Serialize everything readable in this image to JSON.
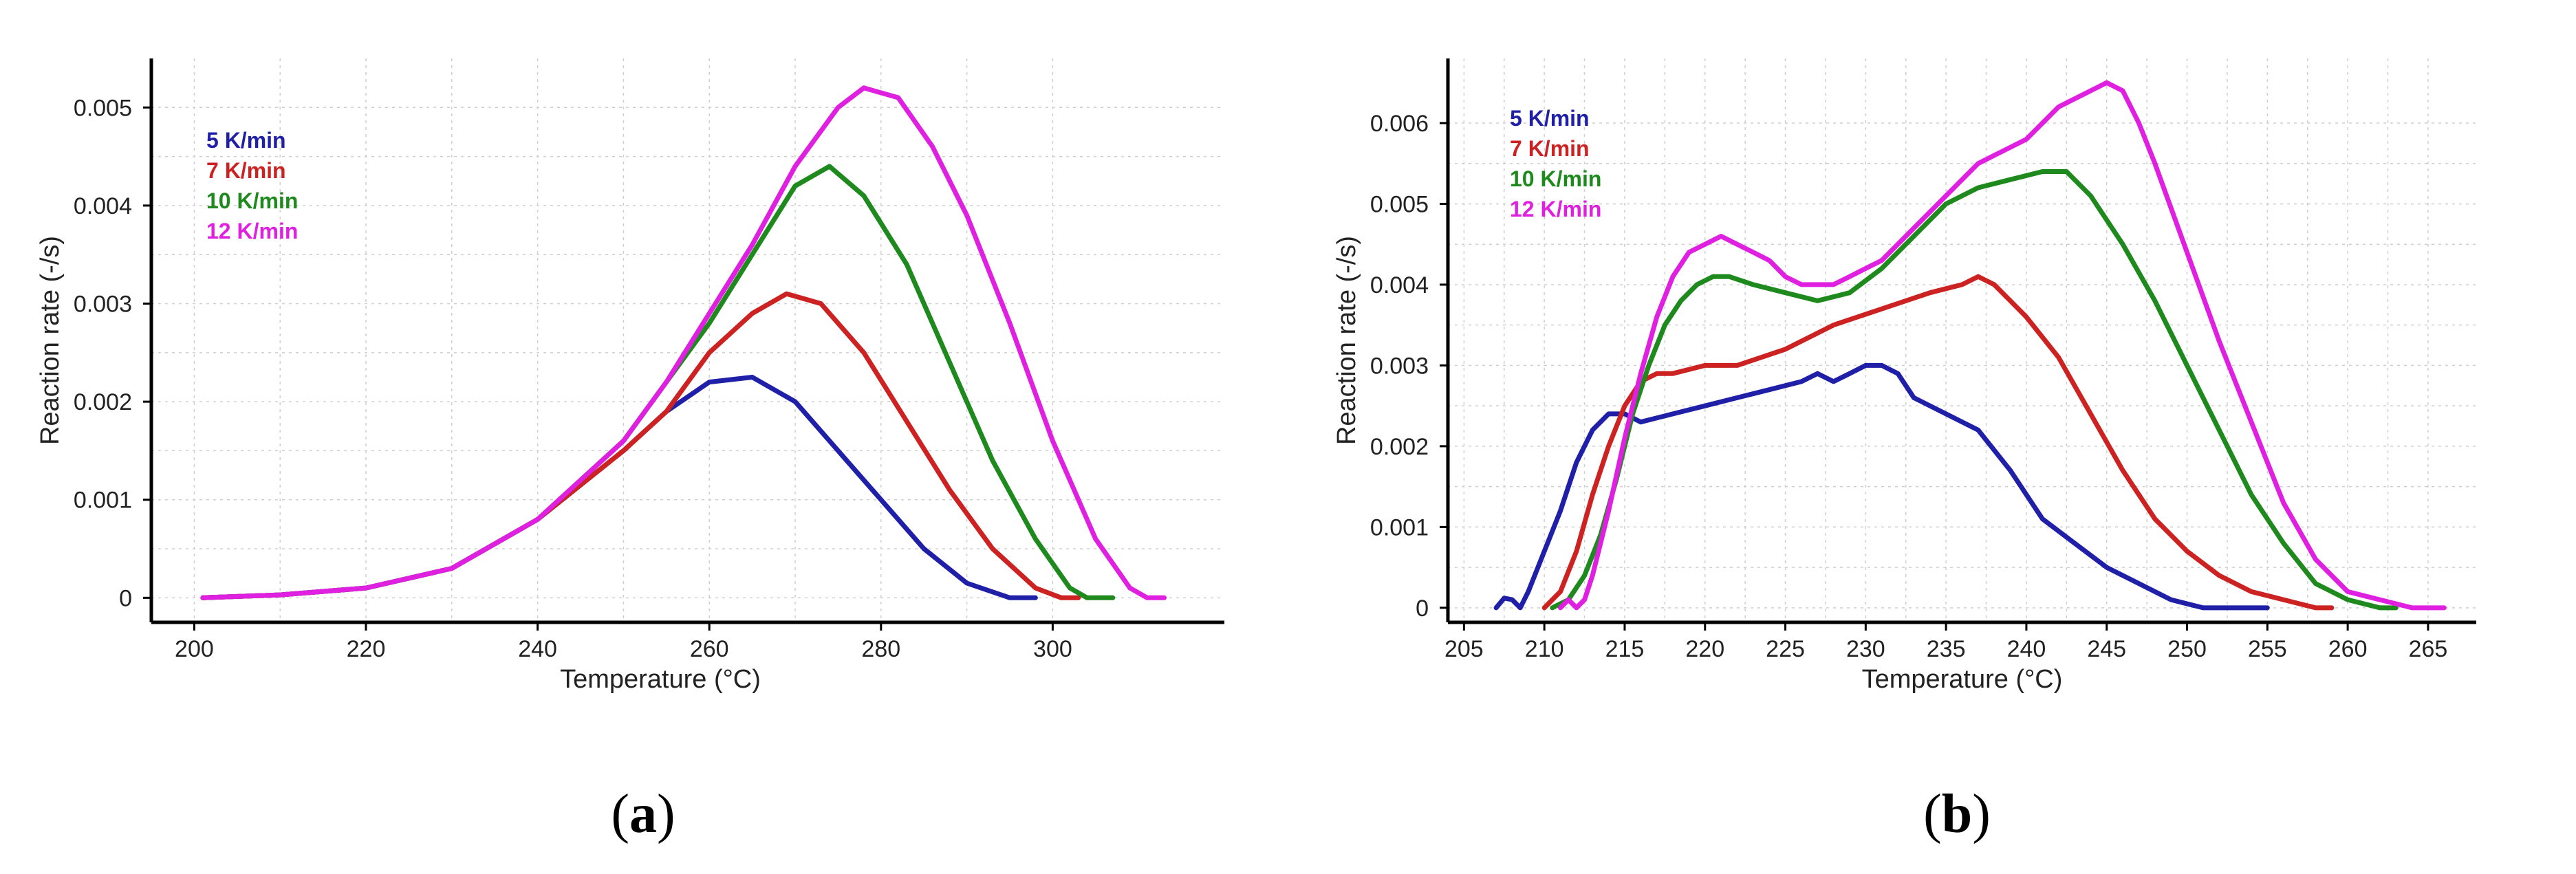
{
  "chart_data": [
    {
      "type": "line",
      "panel_label": "a",
      "xlabel": "Temperature (°C)",
      "ylabel": "Reaction rate (-/s)",
      "xlim": [
        195,
        320
      ],
      "ylim": [
        -0.00025,
        0.0055
      ],
      "xticks": [
        200,
        220,
        240,
        260,
        280,
        300
      ],
      "yticks": [
        0,
        0.001,
        0.002,
        0.003,
        0.004,
        0.005
      ],
      "ytick_labels": [
        "0",
        "0.001",
        "0.002",
        "0.003",
        "0.004",
        "0.005"
      ],
      "legend_position": "top-left",
      "series": [
        {
          "name": "5 K/min",
          "color": "#1f1fa8",
          "x": [
            201,
            210,
            220,
            230,
            240,
            250,
            255,
            260,
            265,
            270,
            275,
            280,
            285,
            290,
            295,
            298
          ],
          "y": [
            0,
            3e-05,
            0.0001,
            0.0003,
            0.0008,
            0.0015,
            0.0019,
            0.0022,
            0.00225,
            0.002,
            0.0015,
            0.001,
            0.0005,
            0.00015,
            0,
            0
          ]
        },
        {
          "name": "7 K/min",
          "color": "#cc2222",
          "x": [
            201,
            210,
            220,
            230,
            240,
            250,
            255,
            260,
            265,
            269,
            273,
            278,
            283,
            288,
            293,
            298,
            301,
            303
          ],
          "y": [
            0,
            3e-05,
            0.0001,
            0.0003,
            0.0008,
            0.0015,
            0.0019,
            0.0025,
            0.0029,
            0.0031,
            0.003,
            0.0025,
            0.0018,
            0.0011,
            0.0005,
            0.0001,
            0,
            0
          ]
        },
        {
          "name": "10 K/min",
          "color": "#1e8a1e",
          "x": [
            201,
            210,
            220,
            230,
            240,
            250,
            255,
            260,
            265,
            270,
            274,
            278,
            283,
            288,
            293,
            298,
            302,
            304,
            307
          ],
          "y": [
            0,
            3e-05,
            0.0001,
            0.0003,
            0.0008,
            0.0016,
            0.0022,
            0.0028,
            0.0035,
            0.0042,
            0.0044,
            0.0041,
            0.0034,
            0.0024,
            0.0014,
            0.0006,
            0.0001,
            0,
            0
          ]
        },
        {
          "name": "12 K/min",
          "color": "#e020e0",
          "x": [
            201,
            210,
            220,
            230,
            240,
            250,
            255,
            260,
            265,
            270,
            275,
            278,
            282,
            286,
            290,
            295,
            300,
            305,
            309,
            311,
            313
          ],
          "y": [
            0,
            3e-05,
            0.0001,
            0.0003,
            0.0008,
            0.0016,
            0.0022,
            0.0029,
            0.0036,
            0.0044,
            0.005,
            0.0052,
            0.0051,
            0.0046,
            0.0039,
            0.0028,
            0.0016,
            0.0006,
            0.0001,
            0,
            0
          ]
        }
      ]
    },
    {
      "type": "line",
      "panel_label": "b",
      "xlabel": "Temperature (°C)",
      "ylabel": "Reaction rate (-/s)",
      "xlim": [
        204,
        268
      ],
      "ylim": [
        -0.00018,
        0.0068
      ],
      "xticks": [
        205,
        210,
        215,
        220,
        225,
        230,
        235,
        240,
        245,
        250,
        255,
        260,
        265
      ],
      "yticks": [
        0,
        0.001,
        0.002,
        0.003,
        0.004,
        0.005,
        0.006
      ],
      "ytick_labels": [
        "0",
        "0.001",
        "0.002",
        "0.003",
        "0.004",
        "0.005",
        "0.006"
      ],
      "legend_position": "top-left",
      "series": [
        {
          "name": "5 K/min",
          "color": "#1f1fa8",
          "x": [
            207,
            207.5,
            208,
            208.5,
            209,
            210,
            211,
            212,
            213,
            214,
            215,
            216,
            218,
            220,
            222,
            224,
            226,
            227,
            228,
            229,
            230,
            231,
            232,
            233,
            235,
            237,
            239,
            241,
            243,
            245,
            247,
            249,
            251,
            253,
            255
          ],
          "y": [
            0,
            0.00012,
            0.0001,
            0,
            0.0002,
            0.0007,
            0.0012,
            0.0018,
            0.0022,
            0.0024,
            0.0024,
            0.0023,
            0.0024,
            0.0025,
            0.0026,
            0.0027,
            0.0028,
            0.0029,
            0.0028,
            0.0029,
            0.003,
            0.003,
            0.0029,
            0.0026,
            0.0024,
            0.0022,
            0.0017,
            0.0011,
            0.0008,
            0.0005,
            0.0003,
            0.0001,
            0,
            0,
            0
          ]
        },
        {
          "name": "7 K/min",
          "color": "#cc2222",
          "x": [
            210,
            211,
            212,
            213,
            214,
            215,
            216,
            217,
            218,
            220,
            222,
            225,
            228,
            231,
            234,
            236,
            237,
            238,
            240,
            242,
            244,
            246,
            248,
            250,
            252,
            254,
            256,
            258,
            259
          ],
          "y": [
            0,
            0.0002,
            0.0007,
            0.0014,
            0.002,
            0.0025,
            0.0028,
            0.0029,
            0.0029,
            0.003,
            0.003,
            0.0032,
            0.0035,
            0.0037,
            0.0039,
            0.004,
            0.0041,
            0.004,
            0.0036,
            0.0031,
            0.0024,
            0.0017,
            0.0011,
            0.0007,
            0.0004,
            0.0002,
            0.0001,
            0,
            0
          ]
        },
        {
          "name": "10 K/min",
          "color": "#1e8a1e",
          "x": [
            210.5,
            211.5,
            212.5,
            213.5,
            214.5,
            215.5,
            216.5,
            217.5,
            218.5,
            219.5,
            220.5,
            221.5,
            223,
            225,
            227,
            229,
            231,
            233,
            235,
            237,
            239,
            241,
            242.5,
            244,
            246,
            248,
            250,
            252,
            254,
            256,
            258,
            260,
            262,
            263
          ],
          "y": [
            0,
            0.0001,
            0.0004,
            0.0009,
            0.0016,
            0.0024,
            0.003,
            0.0035,
            0.0038,
            0.004,
            0.0041,
            0.0041,
            0.004,
            0.0039,
            0.0038,
            0.0039,
            0.0042,
            0.0046,
            0.005,
            0.0052,
            0.0053,
            0.0054,
            0.0054,
            0.0051,
            0.0045,
            0.0038,
            0.003,
            0.0022,
            0.0014,
            0.0008,
            0.0003,
            0.0001,
            0,
            0
          ]
        },
        {
          "name": "12 K/min",
          "color": "#e020e0",
          "x": [
            211,
            211.5,
            212,
            212.5,
            213,
            214,
            215,
            216,
            217,
            218,
            219,
            220,
            221,
            222,
            223,
            224,
            225,
            226,
            227,
            228,
            229,
            230,
            231,
            232,
            233,
            234,
            235,
            236,
            237,
            238,
            239,
            240,
            241,
            242,
            243,
            244,
            245,
            246,
            247,
            248,
            250,
            252,
            254,
            256,
            258,
            260,
            262,
            264,
            266
          ],
          "y": [
            0,
            0.0001,
            0,
            0.0001,
            0.0004,
            0.0012,
            0.0021,
            0.0029,
            0.0036,
            0.0041,
            0.0044,
            0.0045,
            0.0046,
            0.0045,
            0.0044,
            0.0043,
            0.0041,
            0.004,
            0.004,
            0.004,
            0.0041,
            0.0042,
            0.0043,
            0.0045,
            0.0047,
            0.0049,
            0.0051,
            0.0053,
            0.0055,
            0.0056,
            0.0057,
            0.0058,
            0.006,
            0.0062,
            0.0063,
            0.0064,
            0.0065,
            0.0064,
            0.006,
            0.0055,
            0.0044,
            0.0033,
            0.0023,
            0.0013,
            0.0006,
            0.0002,
            0.0001,
            0,
            0
          ]
        }
      ]
    }
  ]
}
